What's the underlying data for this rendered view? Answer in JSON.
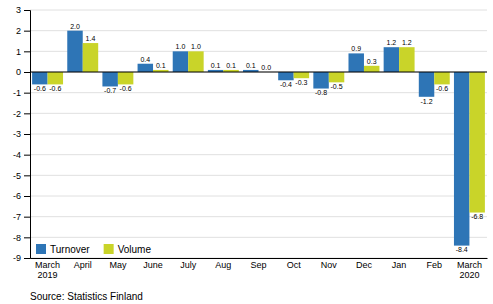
{
  "chart_data": {
    "type": "bar",
    "categories": [
      "March\n2019",
      "April",
      "May",
      "June",
      "July",
      "Aug",
      "Sep",
      "Oct",
      "Nov",
      "Dec",
      "Jan",
      "Feb",
      "March\n2020"
    ],
    "series": [
      {
        "name": "Turnover",
        "color": "#2E75B6",
        "values": [
          -0.6,
          2.0,
          -0.7,
          0.4,
          1.0,
          0.1,
          0.1,
          -0.4,
          -0.8,
          0.9,
          1.2,
          -1.2,
          -8.4
        ],
        "value_labels": [
          "-0.6",
          "2.0",
          "-0.7",
          "0.4",
          "1.0",
          "0.1",
          "0.1",
          "-0.4",
          "-0.8",
          "0.9",
          "1.2",
          "-1.2",
          "-8.4"
        ]
      },
      {
        "name": "Volume",
        "color": "#C9D429",
        "values": [
          -0.6,
          1.4,
          -0.6,
          0.1,
          1.0,
          0.1,
          0.0,
          -0.3,
          -0.5,
          0.3,
          1.2,
          -0.6,
          -6.8
        ],
        "value_labels": [
          "-0.6",
          "1.4",
          "-0.6",
          "0.1",
          "1.0",
          "0.1",
          "0.0",
          "-0.3",
          "-0.5",
          "0.3",
          "1.2",
          "-0.6",
          "-6.8"
        ]
      }
    ],
    "ylim": [
      -9,
      3
    ],
    "yticks": [
      -9,
      -8,
      -7,
      -6,
      -5,
      -4,
      -3,
      -2,
      -1,
      0,
      1,
      2,
      3
    ],
    "grid": true,
    "legend": "lower left",
    "data_labels": true,
    "source": "Source: Statistics Finland"
  }
}
